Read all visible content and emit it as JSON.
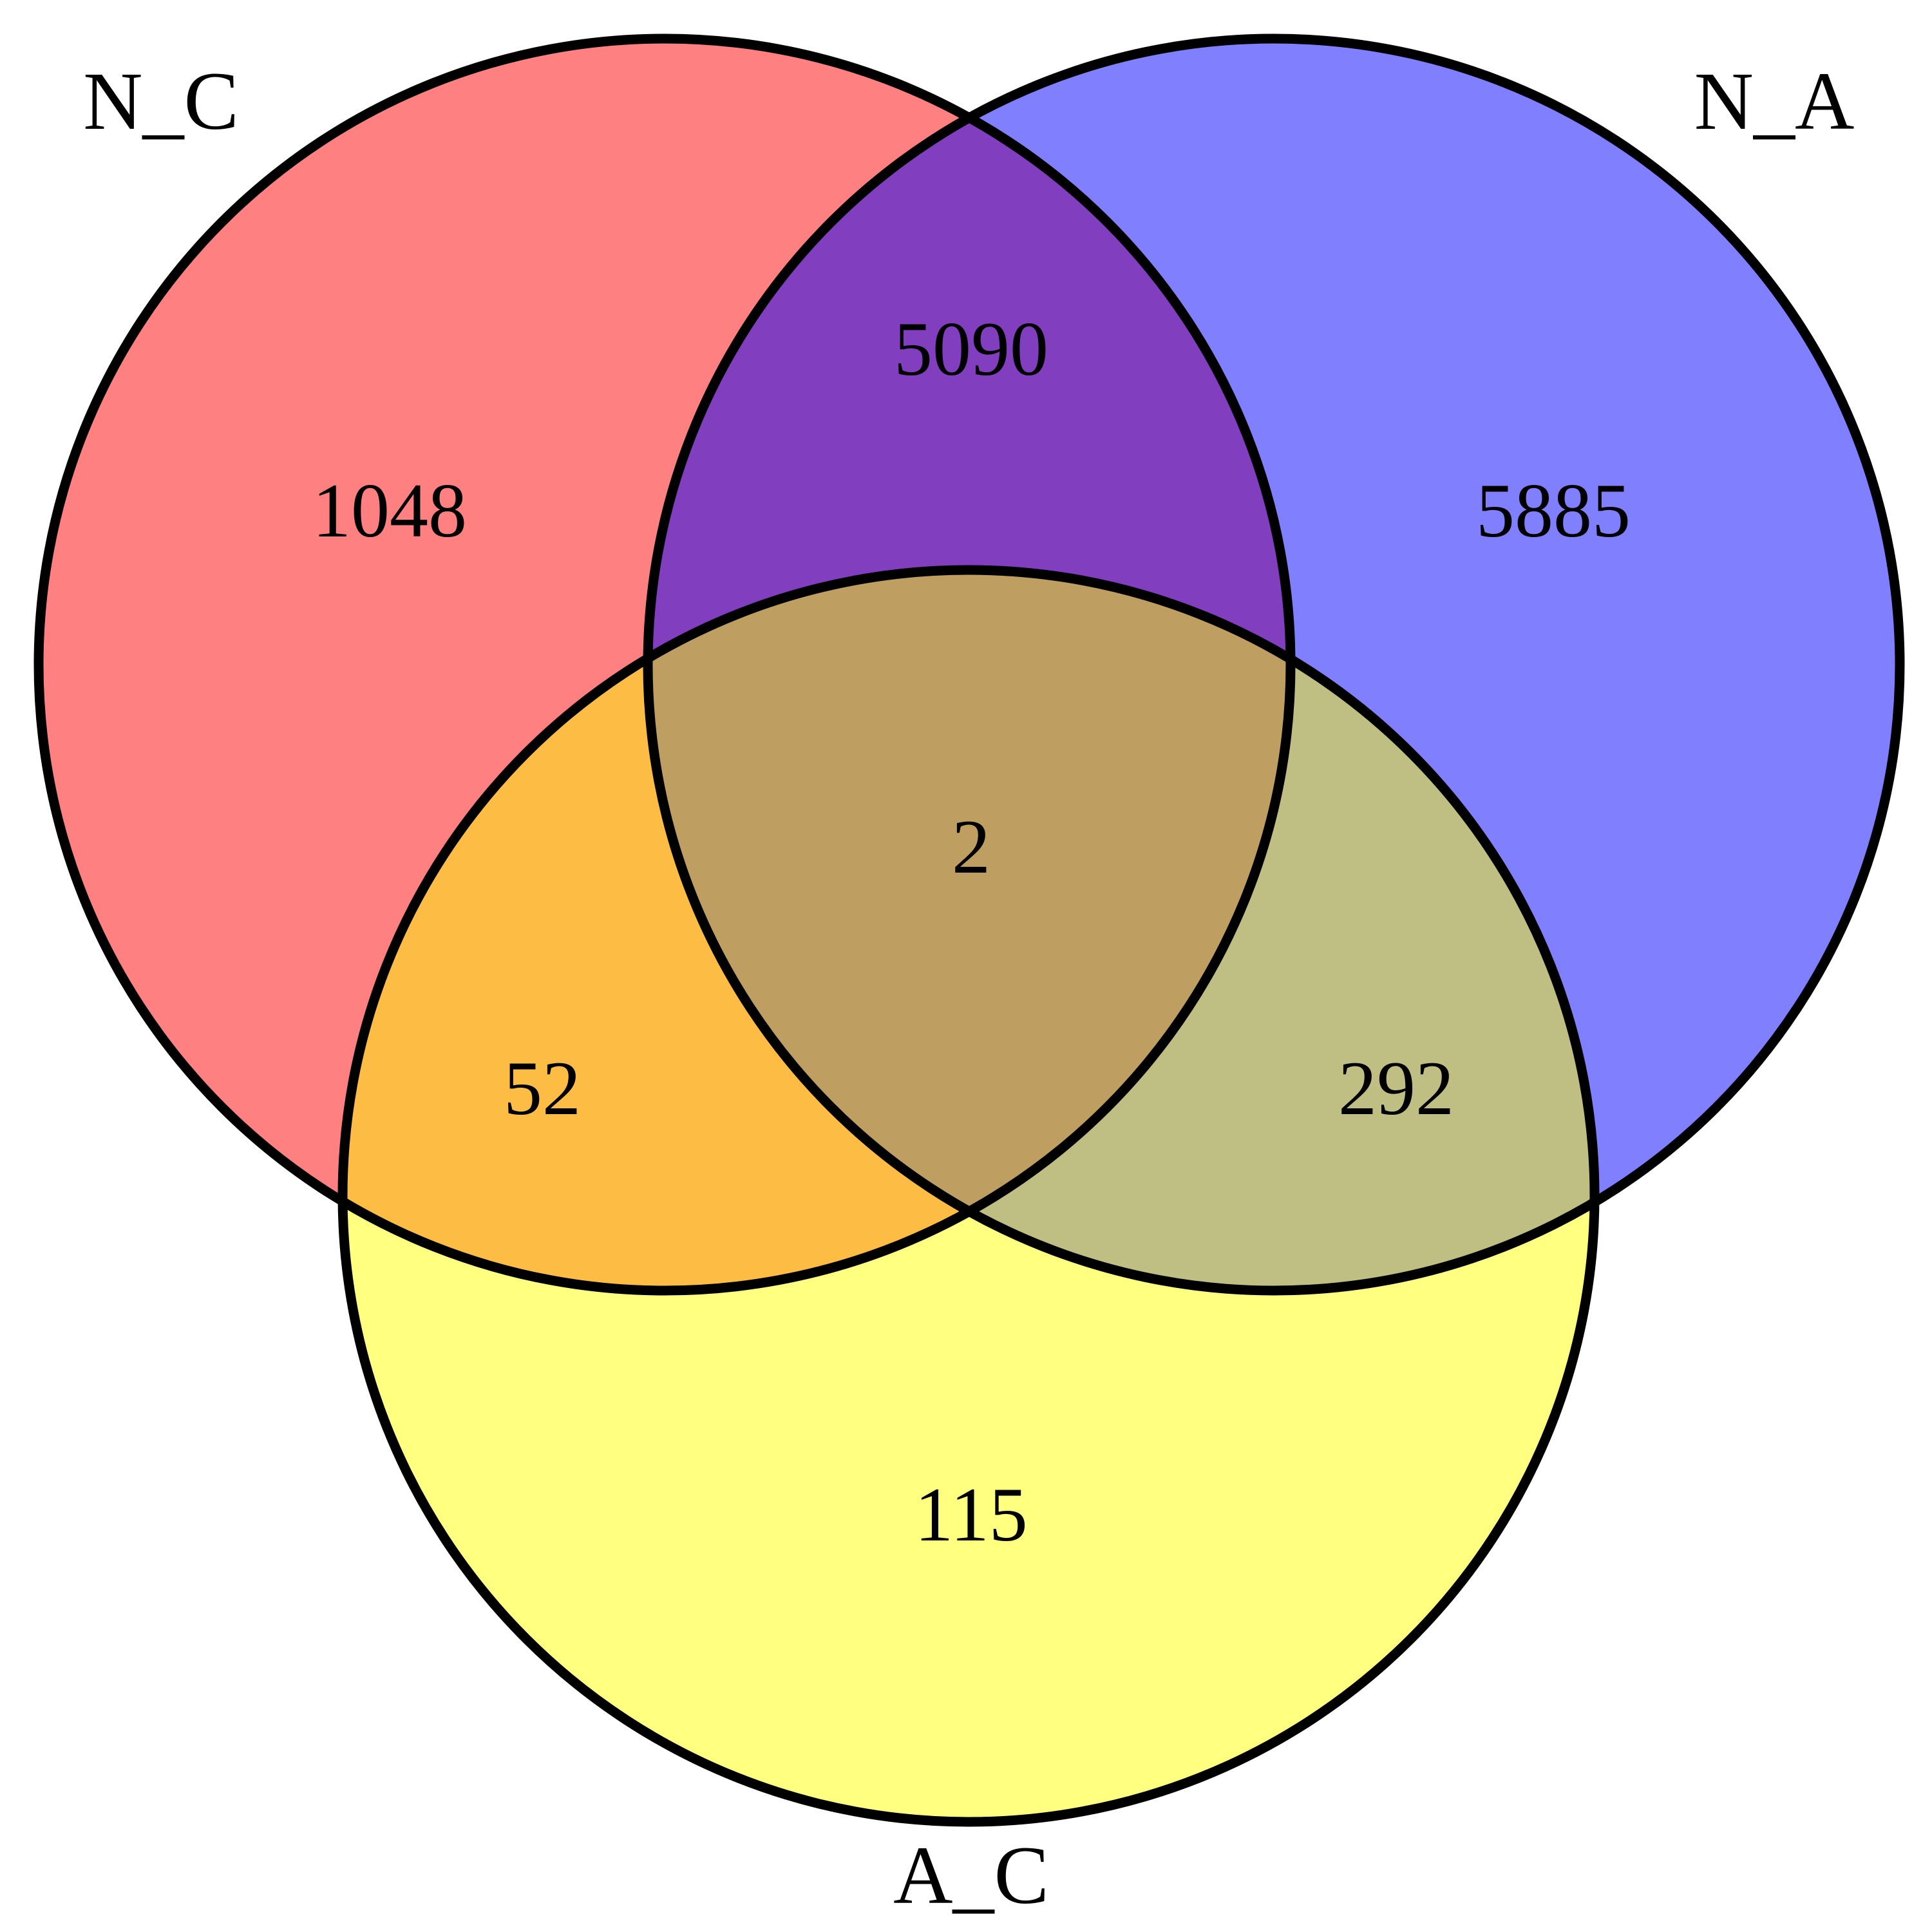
{
  "sets": [
    {
      "key": "nc",
      "label": "N_C",
      "color": "#FF8080"
    },
    {
      "key": "na",
      "label": "N_A",
      "color": "#8080FF"
    },
    {
      "key": "ac",
      "label": "A_C",
      "color": "#FFFF80"
    }
  ],
  "regions": {
    "nc_only": {
      "count": "1048",
      "color": "#FF8080"
    },
    "na_only": {
      "count": "5885",
      "color": "#8080FF"
    },
    "ac_only": {
      "count": "115",
      "color": "#FFFF80"
    },
    "nc_na": {
      "count": "5090",
      "color": "#813EBE"
    },
    "nc_ac": {
      "count": "52",
      "color": "#FDBD44"
    },
    "na_ac": {
      "count": "292",
      "color": "#BFBF84"
    },
    "all_three": {
      "count": "2",
      "color": "#BE9F61"
    }
  },
  "outline_color": "#000000"
}
